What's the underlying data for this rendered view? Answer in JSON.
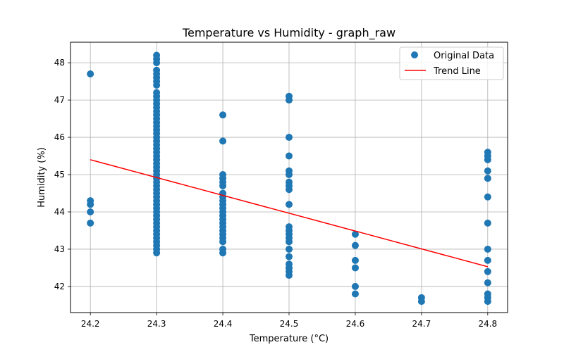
{
  "chart_data": {
    "type": "scatter",
    "title": "Temperature vs Humidity - graph_raw",
    "xlabel": "Temperature (°C)",
    "ylabel": "Humidity (%)",
    "xlim": [
      24.17,
      24.83
    ],
    "ylim": [
      41.3,
      48.55
    ],
    "x_ticks": [
      "24.2",
      "24.3",
      "24.4",
      "24.5",
      "24.6",
      "24.7",
      "24.8"
    ],
    "y_ticks": [
      "42",
      "43",
      "44",
      "45",
      "46",
      "47",
      "48"
    ],
    "grid": true,
    "legend_position": "top-right",
    "colors": {
      "points": "#1f77b4",
      "trend": "#ff0000",
      "grid": "#b0b0b0"
    },
    "series": [
      {
        "name": "Original Data",
        "kind": "scatter",
        "points": [
          [
            24.2,
            47.7
          ],
          [
            24.2,
            44.3
          ],
          [
            24.2,
            44.2
          ],
          [
            24.2,
            44.0
          ],
          [
            24.2,
            43.7
          ],
          [
            24.3,
            48.2
          ],
          [
            24.3,
            48.1
          ],
          [
            24.3,
            48.0
          ],
          [
            24.3,
            47.8
          ],
          [
            24.3,
            47.7
          ],
          [
            24.3,
            47.6
          ],
          [
            24.3,
            47.5
          ],
          [
            24.3,
            47.4
          ],
          [
            24.3,
            47.2
          ],
          [
            24.3,
            47.1
          ],
          [
            24.3,
            47.0
          ],
          [
            24.3,
            46.9
          ],
          [
            24.3,
            46.8
          ],
          [
            24.3,
            46.7
          ],
          [
            24.3,
            46.6
          ],
          [
            24.3,
            46.5
          ],
          [
            24.3,
            46.4
          ],
          [
            24.3,
            46.3
          ],
          [
            24.3,
            46.2
          ],
          [
            24.3,
            46.1
          ],
          [
            24.3,
            46.0
          ],
          [
            24.3,
            45.9
          ],
          [
            24.3,
            45.8
          ],
          [
            24.3,
            45.7
          ],
          [
            24.3,
            45.6
          ],
          [
            24.3,
            45.5
          ],
          [
            24.3,
            45.4
          ],
          [
            24.3,
            45.3
          ],
          [
            24.3,
            45.2
          ],
          [
            24.3,
            45.1
          ],
          [
            24.3,
            45.0
          ],
          [
            24.3,
            44.9
          ],
          [
            24.3,
            44.8
          ],
          [
            24.3,
            44.7
          ],
          [
            24.3,
            44.6
          ],
          [
            24.3,
            44.5
          ],
          [
            24.3,
            44.4
          ],
          [
            24.3,
            44.3
          ],
          [
            24.3,
            44.2
          ],
          [
            24.3,
            44.1
          ],
          [
            24.3,
            44.0
          ],
          [
            24.3,
            43.9
          ],
          [
            24.3,
            43.8
          ],
          [
            24.3,
            43.7
          ],
          [
            24.3,
            43.6
          ],
          [
            24.3,
            43.5
          ],
          [
            24.3,
            43.4
          ],
          [
            24.3,
            43.3
          ],
          [
            24.3,
            43.2
          ],
          [
            24.3,
            43.1
          ],
          [
            24.3,
            43.0
          ],
          [
            24.3,
            42.9
          ],
          [
            24.4,
            46.6
          ],
          [
            24.4,
            45.9
          ],
          [
            24.4,
            45.0
          ],
          [
            24.4,
            44.9
          ],
          [
            24.4,
            44.8
          ],
          [
            24.4,
            44.7
          ],
          [
            24.4,
            44.5
          ],
          [
            24.4,
            44.4
          ],
          [
            24.4,
            44.3
          ],
          [
            24.4,
            44.2
          ],
          [
            24.4,
            44.1
          ],
          [
            24.4,
            44.0
          ],
          [
            24.4,
            43.9
          ],
          [
            24.4,
            43.8
          ],
          [
            24.4,
            43.7
          ],
          [
            24.4,
            43.6
          ],
          [
            24.4,
            43.5
          ],
          [
            24.4,
            43.4
          ],
          [
            24.4,
            43.3
          ],
          [
            24.4,
            43.2
          ],
          [
            24.4,
            43.0
          ],
          [
            24.4,
            42.9
          ],
          [
            24.5,
            47.1
          ],
          [
            24.5,
            47.0
          ],
          [
            24.5,
            46.0
          ],
          [
            24.5,
            45.5
          ],
          [
            24.5,
            45.1
          ],
          [
            24.5,
            45.0
          ],
          [
            24.5,
            44.8
          ],
          [
            24.5,
            44.7
          ],
          [
            24.5,
            44.6
          ],
          [
            24.5,
            44.2
          ],
          [
            24.5,
            43.6
          ],
          [
            24.5,
            43.5
          ],
          [
            24.5,
            43.4
          ],
          [
            24.5,
            43.3
          ],
          [
            24.5,
            43.2
          ],
          [
            24.5,
            43.0
          ],
          [
            24.5,
            42.8
          ],
          [
            24.5,
            42.6
          ],
          [
            24.5,
            42.5
          ],
          [
            24.5,
            42.4
          ],
          [
            24.5,
            42.3
          ],
          [
            24.6,
            43.4
          ],
          [
            24.6,
            43.1
          ],
          [
            24.6,
            42.7
          ],
          [
            24.6,
            42.5
          ],
          [
            24.6,
            42.0
          ],
          [
            24.6,
            41.8
          ],
          [
            24.7,
            41.7
          ],
          [
            24.7,
            41.6
          ],
          [
            24.8,
            45.6
          ],
          [
            24.8,
            45.5
          ],
          [
            24.8,
            45.4
          ],
          [
            24.8,
            45.1
          ],
          [
            24.8,
            44.9
          ],
          [
            24.8,
            44.4
          ],
          [
            24.8,
            43.7
          ],
          [
            24.8,
            43.0
          ],
          [
            24.8,
            42.7
          ],
          [
            24.8,
            42.4
          ],
          [
            24.8,
            42.1
          ],
          [
            24.8,
            41.8
          ],
          [
            24.8,
            41.7
          ],
          [
            24.8,
            41.6
          ]
        ]
      },
      {
        "name": "Trend Line",
        "kind": "line",
        "points": [
          [
            24.2,
            45.4
          ],
          [
            24.8,
            42.53
          ]
        ]
      }
    ]
  }
}
